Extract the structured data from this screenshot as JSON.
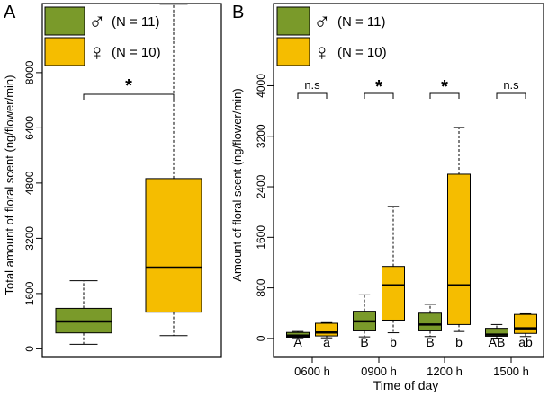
{
  "colors": {
    "male": "#7a9a2a",
    "female": "#f5bd00",
    "axis": "#000000",
    "letter_female": "#8a8a8a"
  },
  "legend": {
    "male": {
      "symbol": "♂",
      "label": "(N = 11)"
    },
    "female": {
      "symbol": "♀",
      "label": "(N = 10)"
    }
  },
  "chart_data": [
    {
      "panel": "A",
      "type": "boxplot",
      "title": "",
      "ylabel": "Total amount of floral scent (ng/flower/min)",
      "xlabel": "",
      "ylim": [
        -250,
        10000
      ],
      "yticks": [
        "0",
        "1600",
        "3200",
        "4800",
        "6400",
        "8000"
      ],
      "series": [
        {
          "name": "male",
          "min": 130,
          "q1": 460,
          "median": 790,
          "q3": 1170,
          "max": 1970
        },
        {
          "name": "female",
          "min": 380,
          "q1": 1060,
          "median": 2350,
          "q3": 4930,
          "max": 9980
        }
      ],
      "significance": {
        "between": [
          "male",
          "female"
        ],
        "label": "*"
      }
    },
    {
      "panel": "B",
      "type": "boxplot",
      "title": "",
      "ylabel": "Amount of floral scent (ng/flower/min)",
      "xlabel": "Time of day",
      "ylim": [
        -300,
        5300
      ],
      "yticks": [
        "0",
        "800",
        "1600",
        "2400",
        "3200",
        "4000"
      ],
      "categories": [
        "0600 h",
        "0900 h",
        "1200 h",
        "1500 h"
      ],
      "series": [
        {
          "name": "male",
          "boxes": [
            {
              "min": 0,
              "q1": 20,
              "median": 45,
              "q3": 95,
              "max": 110
            },
            {
              "min": 25,
              "q1": 120,
              "median": 270,
              "q3": 430,
              "max": 690
            },
            {
              "min": 30,
              "q1": 120,
              "median": 220,
              "q3": 400,
              "max": 540
            },
            {
              "min": 5,
              "q1": 35,
              "median": 60,
              "q3": 160,
              "max": 220
            }
          ],
          "letters": [
            "A",
            "B",
            "B",
            "AB"
          ]
        },
        {
          "name": "female",
          "boxes": [
            {
              "min": 10,
              "q1": 40,
              "median": 95,
              "q3": 240,
              "max": 250
            },
            {
              "min": 90,
              "q1": 290,
              "median": 840,
              "q3": 1140,
              "max": 2090
            },
            {
              "min": 110,
              "q1": 220,
              "median": 840,
              "q3": 2600,
              "max": 3340
            },
            {
              "min": 30,
              "q1": 80,
              "median": 160,
              "q3": 380,
              "max": 390
            }
          ],
          "letters": [
            "a",
            "b",
            "b",
            "ab"
          ]
        }
      ],
      "significance": [
        "n.s",
        "*",
        "*",
        "n.s"
      ]
    }
  ]
}
